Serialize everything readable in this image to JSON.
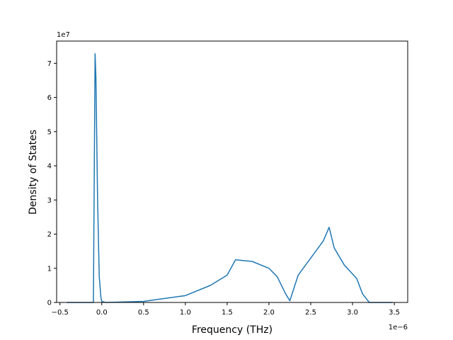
{
  "chart_data": {
    "type": "line",
    "title": "",
    "xlabel": "Frequency (THz)",
    "ylabel": "Density of States",
    "x_offset_label": "1e−6",
    "y_offset_label": "1e7",
    "xlim": [
      -0.54,
      3.66
    ],
    "ylim": [
      0,
      7.65
    ],
    "x_ticks": [
      -0.5,
      0.0,
      0.5,
      1.0,
      1.5,
      2.0,
      2.5,
      3.0,
      3.5
    ],
    "x_tick_labels": [
      "−0.5",
      "0.0",
      "0.5",
      "1.0",
      "1.5",
      "2.0",
      "2.5",
      "3.0",
      "3.5"
    ],
    "y_ticks": [
      0,
      1,
      2,
      3,
      4,
      5,
      6,
      7
    ],
    "y_tick_labels": [
      "0",
      "1",
      "2",
      "3",
      "4",
      "5",
      "6",
      "7"
    ],
    "grid": false,
    "legend": "none",
    "series": [
      {
        "color": "#1f77b4",
        "x": [
          -0.42,
          -0.2,
          -0.1,
          -0.08,
          -0.07,
          -0.05,
          -0.03,
          -0.01,
          0.0,
          0.05,
          0.2,
          0.5,
          1.0,
          1.3,
          1.5,
          1.6,
          1.8,
          2.0,
          2.1,
          2.2,
          2.25,
          2.35,
          2.5,
          2.65,
          2.72,
          2.78,
          2.9,
          3.05,
          3.12,
          3.2,
          3.4,
          3.48
        ],
        "y": [
          0.0,
          0.0,
          0.0,
          7.28,
          6.6,
          3.0,
          0.75,
          0.15,
          0.03,
          0.0,
          0.01,
          0.03,
          0.2,
          0.5,
          0.8,
          1.25,
          1.2,
          1.0,
          0.75,
          0.25,
          0.05,
          0.8,
          1.3,
          1.8,
          2.2,
          1.6,
          1.1,
          0.7,
          0.25,
          0.0,
          0.0,
          0.0
        ]
      }
    ]
  }
}
